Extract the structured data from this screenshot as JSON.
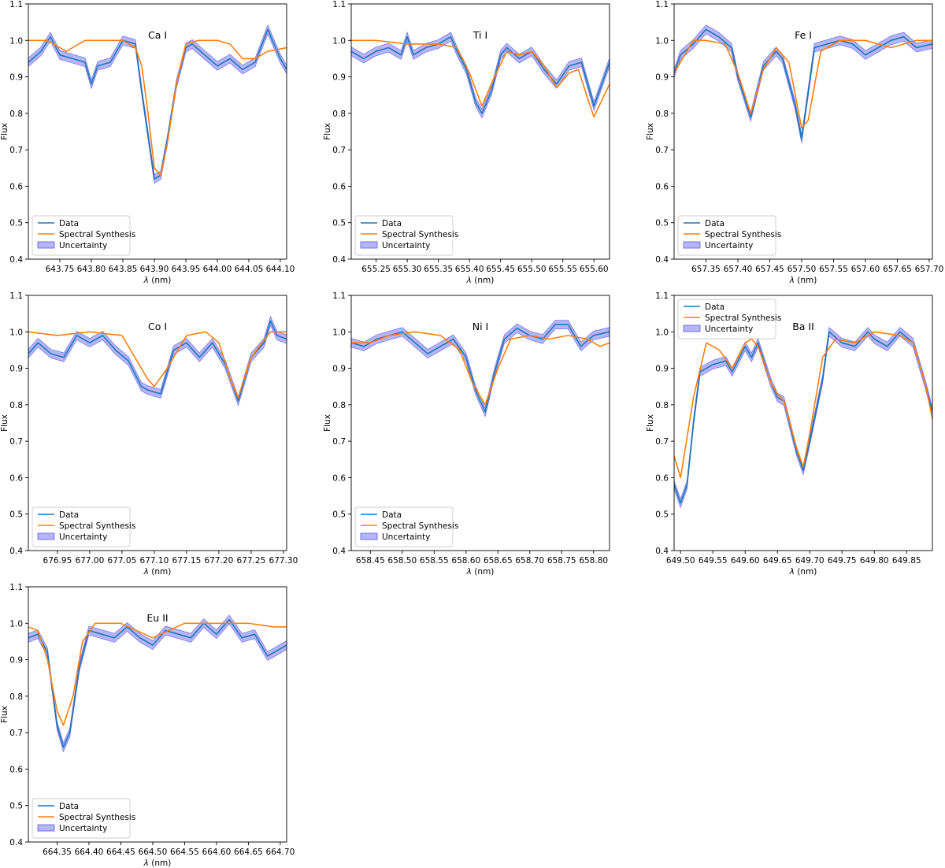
{
  "figure": {
    "xlabel": "λ (nm)",
    "ylabel": "Flux"
  },
  "legend": {
    "data": "Data",
    "synthesis": "Spectral Synthesis",
    "uncertainty": "Uncertainty"
  },
  "colors": {
    "data": "#1f77b4",
    "synthesis": "#ff7f0e",
    "band": "#5b5bf0"
  },
  "chart_data": [
    {
      "type": "line",
      "title": "Ca I",
      "xlabel": "λ (nm)",
      "ylabel": "Flux",
      "xlim": [
        643.7,
        644.11
      ],
      "ylim": [
        0.4,
        1.1
      ],
      "xticks": [
        643.75,
        643.8,
        643.85,
        643.9,
        643.95,
        644.0,
        644.05,
        644.1
      ],
      "yticks": [
        0.4,
        0.5,
        0.6,
        0.7,
        0.8,
        0.9,
        1.0,
        1.1
      ],
      "legend_position": "lower-left",
      "series": [
        {
          "name": "Data",
          "x": [
            643.7,
            643.72,
            643.735,
            643.75,
            643.77,
            643.79,
            643.8,
            643.81,
            643.83,
            643.85,
            643.87,
            643.88,
            643.89,
            643.9,
            643.91,
            643.92,
            643.935,
            643.95,
            643.96,
            643.98,
            644.0,
            644.02,
            644.04,
            644.06,
            644.08,
            644.09,
            644.1,
            644.11
          ],
          "y": [
            0.94,
            0.97,
            1.01,
            0.96,
            0.95,
            0.94,
            0.88,
            0.93,
            0.94,
            1.0,
            0.99,
            0.86,
            0.74,
            0.62,
            0.63,
            0.72,
            0.88,
            0.98,
            0.99,
            0.96,
            0.93,
            0.95,
            0.92,
            0.94,
            1.03,
            0.99,
            0.95,
            0.92
          ]
        },
        {
          "name": "Spectral Synthesis",
          "x": [
            643.7,
            643.73,
            643.76,
            643.79,
            643.82,
            643.85,
            643.87,
            643.88,
            643.89,
            643.9,
            643.91,
            643.92,
            643.935,
            643.95,
            643.97,
            644.0,
            644.02,
            644.04,
            644.06,
            644.08,
            644.11
          ],
          "y": [
            1.0,
            1.0,
            0.97,
            1.0,
            1.0,
            1.0,
            0.98,
            0.93,
            0.8,
            0.65,
            0.63,
            0.71,
            0.88,
            0.99,
            1.0,
            1.0,
            0.99,
            0.95,
            0.95,
            0.97,
            0.98
          ]
        }
      ]
    },
    {
      "type": "line",
      "title": "Ti I",
      "xlabel": "λ (nm)",
      "ylabel": "Flux",
      "xlim": [
        655.21,
        655.625
      ],
      "ylim": [
        0.4,
        1.1
      ],
      "xticks": [
        655.25,
        655.3,
        655.35,
        655.4,
        655.45,
        655.5,
        655.55,
        655.6
      ],
      "yticks": [
        0.4,
        0.5,
        0.6,
        0.7,
        0.8,
        0.9,
        1.0,
        1.1
      ],
      "legend_position": "lower-left",
      "series": [
        {
          "name": "Data",
          "x": [
            655.21,
            655.23,
            655.25,
            655.27,
            655.29,
            655.3,
            655.31,
            655.33,
            655.35,
            655.37,
            655.38,
            655.395,
            655.41,
            655.42,
            655.435,
            655.45,
            655.46,
            655.48,
            655.5,
            655.52,
            655.54,
            655.56,
            655.58,
            655.6,
            655.625
          ],
          "y": [
            0.97,
            0.95,
            0.97,
            0.98,
            0.96,
            1.01,
            0.96,
            0.98,
            0.99,
            1.01,
            0.97,
            0.92,
            0.83,
            0.8,
            0.86,
            0.96,
            0.98,
            0.95,
            0.97,
            0.92,
            0.88,
            0.93,
            0.94,
            0.82,
            0.94
          ]
        },
        {
          "name": "Spectral Synthesis",
          "x": [
            655.21,
            655.25,
            655.3,
            655.35,
            655.38,
            655.4,
            655.42,
            655.44,
            655.46,
            655.48,
            655.5,
            655.52,
            655.54,
            655.56,
            655.575,
            655.59,
            655.6,
            655.625
          ],
          "y": [
            1.0,
            1.0,
            0.99,
            0.99,
            0.98,
            0.91,
            0.82,
            0.9,
            0.97,
            0.96,
            0.97,
            0.93,
            0.87,
            0.91,
            0.92,
            0.84,
            0.79,
            0.88
          ]
        }
      ]
    },
    {
      "type": "line",
      "title": "Fe I",
      "xlabel": "λ (nm)",
      "ylabel": "Flux",
      "xlim": [
        657.3,
        657.705
      ],
      "ylim": [
        0.4,
        1.1
      ],
      "xticks": [
        657.35,
        657.4,
        657.45,
        657.5,
        657.55,
        657.6,
        657.65,
        657.7
      ],
      "yticks": [
        0.4,
        0.5,
        0.6,
        0.7,
        0.8,
        0.9,
        1.0,
        1.1
      ],
      "legend_position": "lower-left",
      "series": [
        {
          "name": "Data",
          "x": [
            657.3,
            657.31,
            657.33,
            657.35,
            657.37,
            657.39,
            657.4,
            657.42,
            657.44,
            657.46,
            657.47,
            657.49,
            657.5,
            657.52,
            657.54,
            657.56,
            657.58,
            657.6,
            657.62,
            657.64,
            657.66,
            657.68,
            657.705
          ],
          "y": [
            0.91,
            0.96,
            0.99,
            1.03,
            1.01,
            0.98,
            0.9,
            0.79,
            0.93,
            0.97,
            0.95,
            0.82,
            0.73,
            0.98,
            0.99,
            1.0,
            0.99,
            0.96,
            0.98,
            1.0,
            1.01,
            0.98,
            0.99
          ]
        },
        {
          "name": "Spectral Synthesis",
          "x": [
            657.3,
            657.33,
            657.35,
            657.38,
            657.4,
            657.42,
            657.44,
            657.46,
            657.48,
            657.5,
            657.51,
            657.53,
            657.56,
            657.6,
            657.64,
            657.68,
            657.705
          ],
          "y": [
            0.91,
            1.0,
            1.0,
            0.99,
            0.91,
            0.8,
            0.92,
            0.98,
            0.94,
            0.76,
            0.78,
            0.97,
            1.0,
            1.0,
            0.98,
            1.0,
            1.0
          ]
        }
      ]
    },
    {
      "type": "line",
      "title": "Co I",
      "xlabel": "λ (nm)",
      "ylabel": "Flux",
      "xlim": [
        676.905,
        677.305
      ],
      "ylim": [
        0.4,
        1.1
      ],
      "xticks": [
        676.95,
        677.0,
        677.05,
        677.1,
        677.15,
        677.2,
        677.25,
        677.3
      ],
      "yticks": [
        0.4,
        0.5,
        0.6,
        0.7,
        0.8,
        0.9,
        1.0,
        1.1
      ],
      "legend_position": "lower-left",
      "series": [
        {
          "name": "Data",
          "x": [
            676.905,
            676.92,
            676.94,
            676.96,
            676.98,
            677.0,
            677.02,
            677.04,
            677.06,
            677.08,
            677.09,
            677.11,
            677.13,
            677.15,
            677.17,
            677.19,
            677.21,
            677.23,
            677.25,
            677.27,
            677.28,
            677.29,
            677.305
          ],
          "y": [
            0.94,
            0.97,
            0.94,
            0.93,
            0.99,
            0.97,
            0.99,
            0.95,
            0.92,
            0.85,
            0.84,
            0.83,
            0.95,
            0.97,
            0.93,
            0.97,
            0.91,
            0.81,
            0.93,
            0.97,
            1.03,
            0.99,
            0.98
          ]
        },
        {
          "name": "Spectral Synthesis",
          "x": [
            676.905,
            676.95,
            677.0,
            677.05,
            677.07,
            677.09,
            677.1,
            677.12,
            677.15,
            677.18,
            677.2,
            677.22,
            677.23,
            677.25,
            677.28,
            677.305
          ],
          "y": [
            1.0,
            0.99,
            1.0,
            0.99,
            0.93,
            0.87,
            0.85,
            0.9,
            0.99,
            1.0,
            0.97,
            0.86,
            0.82,
            0.93,
            1.0,
            1.0
          ]
        }
      ]
    },
    {
      "type": "line",
      "title": "Ni I",
      "xlabel": "λ (nm)",
      "ylabel": "Flux",
      "xlim": [
        658.42,
        658.825
      ],
      "ylim": [
        0.4,
        1.1
      ],
      "xticks": [
        658.45,
        658.5,
        658.55,
        658.6,
        658.65,
        658.7,
        658.75,
        658.8
      ],
      "yticks": [
        0.4,
        0.5,
        0.6,
        0.7,
        0.8,
        0.9,
        1.0,
        1.1
      ],
      "legend_position": "lower-left",
      "series": [
        {
          "name": "Data",
          "x": [
            658.42,
            658.44,
            658.46,
            658.48,
            658.5,
            658.52,
            658.54,
            658.56,
            658.58,
            658.6,
            658.615,
            658.63,
            658.645,
            658.66,
            658.68,
            658.7,
            658.72,
            658.74,
            658.76,
            658.78,
            658.8,
            658.825
          ],
          "y": [
            0.97,
            0.96,
            0.98,
            0.99,
            1.0,
            0.97,
            0.94,
            0.96,
            0.98,
            0.93,
            0.84,
            0.78,
            0.89,
            0.98,
            1.01,
            0.99,
            0.98,
            1.02,
            1.02,
            0.96,
            0.99,
            1.0
          ]
        },
        {
          "name": "Spectral Synthesis",
          "x": [
            658.42,
            658.45,
            658.48,
            658.52,
            658.56,
            658.59,
            658.61,
            658.63,
            658.65,
            658.67,
            658.7,
            658.73,
            658.76,
            658.79,
            658.81,
            658.825
          ],
          "y": [
            0.97,
            0.97,
            0.99,
            1.0,
            0.99,
            0.95,
            0.86,
            0.8,
            0.9,
            0.98,
            0.99,
            0.98,
            0.99,
            0.98,
            0.96,
            0.97
          ]
        }
      ]
    },
    {
      "type": "line",
      "title": "Ba II",
      "xlabel": "λ (nm)",
      "ylabel": "Flux",
      "xlim": [
        649.49,
        649.89
      ],
      "ylim": [
        0.4,
        1.1
      ],
      "xticks": [
        649.5,
        649.55,
        649.6,
        649.65,
        649.7,
        649.75,
        649.8,
        649.85
      ],
      "yticks": [
        0.4,
        0.5,
        0.6,
        0.7,
        0.8,
        0.9,
        1.0,
        1.1
      ],
      "legend_position": "upper-left",
      "series": [
        {
          "name": "Data",
          "x": [
            649.49,
            649.5,
            649.51,
            649.52,
            649.53,
            649.55,
            649.57,
            649.58,
            649.6,
            649.61,
            649.62,
            649.64,
            649.65,
            649.66,
            649.68,
            649.69,
            649.7,
            649.72,
            649.73,
            649.75,
            649.77,
            649.79,
            649.8,
            649.82,
            649.84,
            649.86,
            649.88,
            649.89
          ],
          "y": [
            0.58,
            0.53,
            0.58,
            0.75,
            0.89,
            0.91,
            0.92,
            0.89,
            0.96,
            0.93,
            0.97,
            0.86,
            0.82,
            0.81,
            0.67,
            0.62,
            0.7,
            0.87,
            1.0,
            0.97,
            0.96,
            1.0,
            0.98,
            0.96,
            1.0,
            0.97,
            0.85,
            0.78
          ]
        },
        {
          "name": "Spectral Synthesis",
          "x": [
            649.49,
            649.5,
            649.52,
            649.54,
            649.56,
            649.58,
            649.6,
            649.61,
            649.62,
            649.64,
            649.65,
            649.66,
            649.68,
            649.69,
            649.7,
            649.72,
            649.74,
            649.77,
            649.8,
            649.84,
            649.86,
            649.88,
            649.89
          ],
          "y": [
            0.66,
            0.6,
            0.82,
            0.97,
            0.95,
            0.9,
            0.97,
            0.98,
            0.96,
            0.86,
            0.83,
            0.81,
            0.68,
            0.63,
            0.72,
            0.93,
            0.98,
            0.97,
            1.0,
            0.99,
            0.97,
            0.85,
            0.76
          ]
        }
      ]
    },
    {
      "type": "line",
      "title": "Eu II",
      "xlabel": "λ (nm)",
      "ylabel": "Flux",
      "xlim": [
        664.305,
        664.71
      ],
      "ylim": [
        0.4,
        1.1
      ],
      "xticks": [
        664.35,
        664.4,
        664.45,
        664.5,
        664.55,
        664.6,
        664.65,
        664.7
      ],
      "yticks": [
        0.4,
        0.5,
        0.6,
        0.7,
        0.8,
        0.9,
        1.0,
        1.1
      ],
      "legend_position": "lower-left",
      "series": [
        {
          "name": "Data",
          "x": [
            664.305,
            664.32,
            664.335,
            664.35,
            664.36,
            664.37,
            664.385,
            664.4,
            664.42,
            664.44,
            664.46,
            664.48,
            664.5,
            664.52,
            664.54,
            664.56,
            664.58,
            664.6,
            664.62,
            664.64,
            664.66,
            664.68,
            664.69,
            664.71
          ],
          "y": [
            0.96,
            0.97,
            0.92,
            0.72,
            0.66,
            0.7,
            0.88,
            0.98,
            0.97,
            0.96,
            0.99,
            0.96,
            0.94,
            0.98,
            0.97,
            0.96,
            1.0,
            0.97,
            1.01,
            0.96,
            0.97,
            0.91,
            0.92,
            0.94
          ]
        },
        {
          "name": "Spectral Synthesis",
          "x": [
            664.305,
            664.32,
            664.335,
            664.35,
            664.36,
            664.375,
            664.39,
            664.41,
            664.45,
            664.5,
            664.55,
            664.6,
            664.65,
            664.69,
            664.71
          ],
          "y": [
            0.99,
            0.98,
            0.9,
            0.76,
            0.72,
            0.8,
            0.95,
            1.0,
            1.0,
            0.96,
            1.0,
            1.0,
            1.0,
            0.99,
            0.99
          ]
        }
      ]
    }
  ]
}
